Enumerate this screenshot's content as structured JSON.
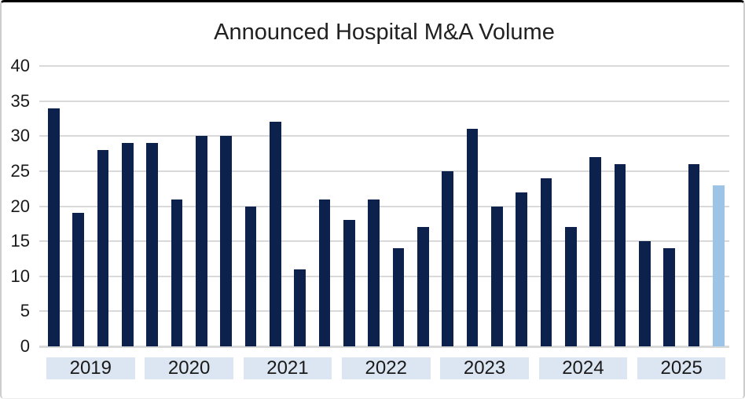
{
  "chart_data": {
    "type": "bar",
    "title": "Announced Hospital M&A Volume",
    "xlabel": "",
    "ylabel": "",
    "ylim": [
      0,
      40
    ],
    "yticks": [
      0,
      5,
      10,
      15,
      20,
      25,
      30,
      35,
      40
    ],
    "grid": "horizontal",
    "legend": "none",
    "categories": [
      "2019",
      "2020",
      "2021",
      "2022",
      "2023",
      "2024",
      "2025"
    ],
    "bars_per_group": 4,
    "groups": [
      {
        "label": "2019",
        "values": [
          34,
          19,
          28,
          29
        ]
      },
      {
        "label": "2020",
        "values": [
          29,
          21,
          30,
          30
        ]
      },
      {
        "label": "2021",
        "values": [
          20,
          32,
          11,
          21
        ]
      },
      {
        "label": "2022",
        "values": [
          18,
          21,
          14,
          17
        ]
      },
      {
        "label": "2023",
        "values": [
          25,
          31,
          20,
          22
        ]
      },
      {
        "label": "2024",
        "values": [
          24,
          17,
          27,
          26
        ]
      },
      {
        "label": "2025",
        "values": [
          15,
          14,
          26,
          23
        ]
      }
    ],
    "highlight": {
      "group_index": 6,
      "value_index": 3,
      "value": 23
    },
    "colors": {
      "bar": "#0d214d",
      "highlight_bar": "#9dc3e6",
      "gridline": "#d9d9d9",
      "axis_line": "#d9d9d9",
      "year_band_bg": "#dce6f2",
      "text": "#1a1a1a",
      "title_text": "#212121",
      "top_border": "#000000"
    }
  }
}
